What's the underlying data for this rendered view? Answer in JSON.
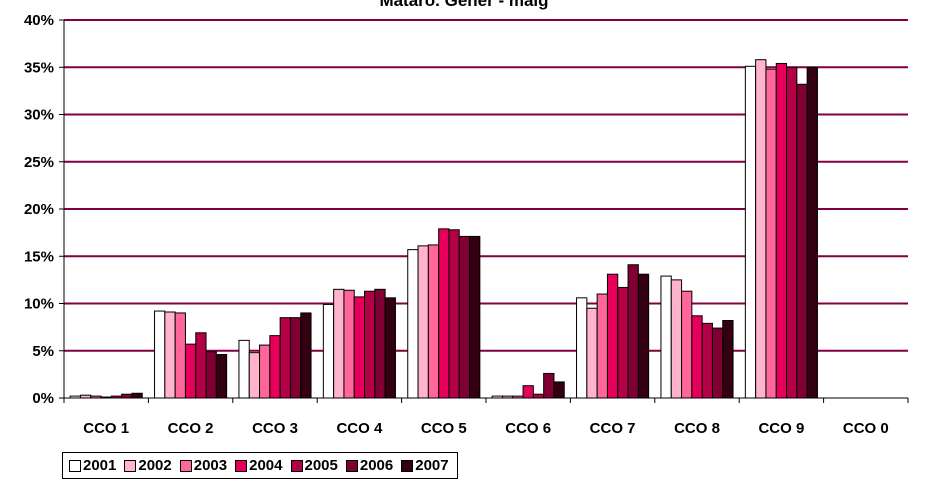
{
  "chart_data": {
    "type": "bar",
    "title": "Mataró. Gener - maig",
    "xlabel": "",
    "ylabel": "",
    "ylim": [
      0,
      40
    ],
    "y_ticks": [
      "0%",
      "5%",
      "10%",
      "15%",
      "20%",
      "25%",
      "30%",
      "35%",
      "40%"
    ],
    "grid": true,
    "legend_position": "bottom",
    "categories": [
      "CCO 1",
      "CCO 2",
      "CCO 3",
      "CCO 4",
      "CCO 5",
      "CCO 6",
      "CCO 7",
      "CCO 8",
      "CCO 9",
      "CCO 0"
    ],
    "series": [
      {
        "name": "2001",
        "color": "#ffffff",
        "values": [
          0.2,
          9.2,
          6.1,
          9.9,
          15.7,
          0.2,
          10.6,
          12.9,
          35.1,
          0.0
        ]
      },
      {
        "name": "2002",
        "color": "#ffb3cc",
        "values": [
          0.3,
          9.1,
          4.8,
          11.5,
          16.1,
          0.2,
          9.5,
          12.5,
          35.8,
          0.0
        ]
      },
      {
        "name": "2003",
        "color": "#ff6699",
        "values": [
          0.2,
          9.0,
          5.6,
          11.4,
          16.2,
          0.2,
          11.0,
          11.3,
          34.8,
          0.0
        ]
      },
      {
        "name": "2004",
        "color": "#e6005c",
        "values": [
          0.1,
          5.7,
          6.6,
          10.7,
          17.9,
          1.3,
          13.1,
          8.7,
          35.4,
          0.0
        ]
      },
      {
        "name": "2005",
        "color": "#b30047",
        "values": [
          0.2,
          6.9,
          8.5,
          11.3,
          17.8,
          0.4,
          11.7,
          7.9,
          35.0,
          0.0
        ]
      },
      {
        "name": "2006",
        "color": "#800033",
        "values": [
          0.4,
          4.9,
          8.5,
          11.5,
          17.1,
          2.6,
          14.1,
          7.4,
          33.2,
          0.0
        ]
      },
      {
        "name": "2007",
        "color": "#330011",
        "values": [
          0.5,
          4.6,
          9.0,
          10.6,
          17.1,
          1.7,
          13.1,
          8.2,
          35.0,
          0.0
        ]
      }
    ],
    "colors": {
      "gridline": "#800040",
      "axis": "#000000"
    }
  }
}
